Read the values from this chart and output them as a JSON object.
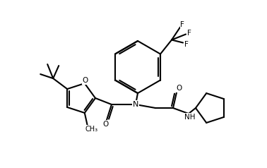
{
  "background_color": "#ffffff",
  "line_color": "#000000",
  "line_width": 1.5,
  "figsize": [
    3.78,
    2.38
  ],
  "dpi": 100,
  "xlim": [
    0,
    378
  ],
  "ylim": [
    0,
    238
  ]
}
